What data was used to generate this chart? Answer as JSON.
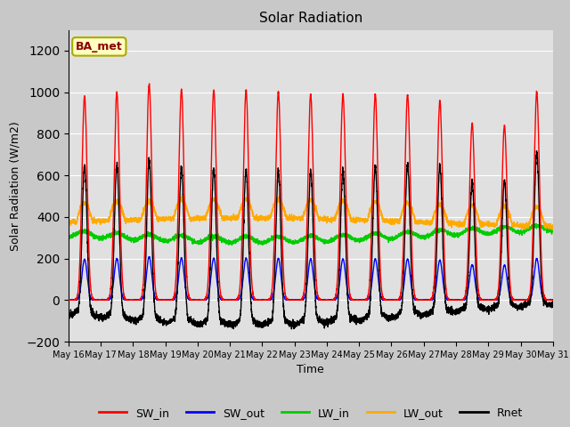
{
  "title": "Solar Radiation",
  "xlabel": "Time",
  "ylabel": "Solar Radiation (W/m2)",
  "ylim": [
    -200,
    1300
  ],
  "yticks": [
    -200,
    0,
    200,
    400,
    600,
    800,
    1000,
    1200
  ],
  "start_day": 16,
  "end_day": 31,
  "n_days": 15,
  "points_per_day": 288,
  "colors": {
    "SW_in": "#ff0000",
    "SW_out": "#0000ff",
    "LW_in": "#00cc00",
    "LW_out": "#ffaa00",
    "Rnet": "#000000"
  },
  "linewidths": {
    "SW_in": 1.0,
    "SW_out": 1.0,
    "LW_in": 1.0,
    "LW_out": 1.0,
    "Rnet": 1.0
  },
  "background_color": "#c8c8c8",
  "plot_bg_color": "#e0e0e0",
  "annotation_text": "BA_met",
  "annotation_color": "#8b0000",
  "annotation_bg": "#ffffc0",
  "annotation_border": "#aaaa00",
  "legend_ncol": 5
}
